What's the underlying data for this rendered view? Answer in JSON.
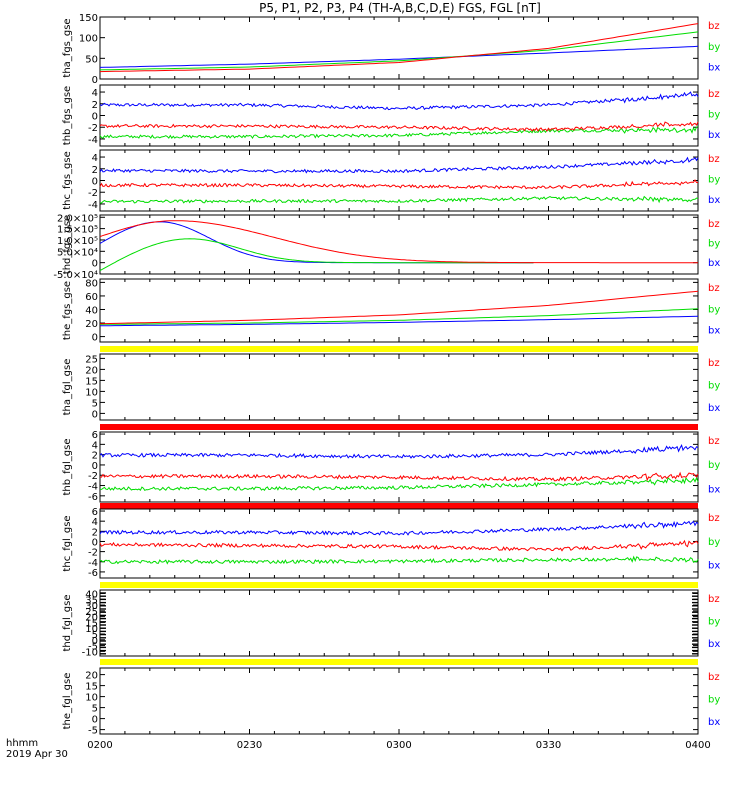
{
  "title": "P5, P1, P2, P3, P4 (TH-A,B,C,D,E) FGS, FGL [nT]",
  "time_axis": {
    "label": "hhmm",
    "date": "2019 Apr 30",
    "ticks": [
      "0200",
      "0230",
      "0300",
      "0330",
      "0400"
    ]
  },
  "legend_labels": [
    "bz",
    "by",
    "bx"
  ],
  "colors": {
    "bx": "#0000ff",
    "by": "#00dd00",
    "bz": "#ff0000",
    "flag_red": "#ff0000",
    "flag_yellow": "#ffff00"
  },
  "chart_data": [
    {
      "type": "line",
      "ylabel": "tha_fgs_gse",
      "ylim": [
        0,
        150
      ],
      "yticks": [
        "0",
        "50",
        "100",
        "150"
      ],
      "ytick_values": [
        0,
        50,
        100,
        150
      ],
      "x": [
        "0200",
        "0230",
        "0300",
        "0330",
        "0400"
      ],
      "series": [
        {
          "name": "bx",
          "values": [
            28,
            36,
            48,
            63,
            79
          ]
        },
        {
          "name": "by",
          "values": [
            22,
            29,
            44,
            70,
            114
          ]
        },
        {
          "name": "bz",
          "values": [
            18,
            24,
            40,
            74,
            134
          ]
        }
      ]
    },
    {
      "type": "line",
      "ylabel": "thb_fgs_gse",
      "ylim": [
        -5.2,
        5.2
      ],
      "yticks": [
        "-4",
        "-2",
        "0",
        "2",
        "4"
      ],
      "ytick_values": [
        -4,
        -2,
        0,
        2,
        4
      ],
      "x": [
        "0200",
        "0230",
        "0300",
        "0330",
        "0400"
      ],
      "series": [
        {
          "name": "bx",
          "values": [
            1.8,
            1.8,
            1.2,
            1.8,
            3.6
          ]
        },
        {
          "name": "by",
          "values": [
            -3.6,
            -3.6,
            -3.4,
            -2.6,
            -2.4
          ]
        },
        {
          "name": "bz",
          "values": [
            -1.8,
            -1.8,
            -2.0,
            -2.4,
            -1.4
          ]
        }
      ]
    },
    {
      "type": "line",
      "ylabel": "thc_fgs_gse",
      "ylim": [
        -5.2,
        5.2
      ],
      "yticks": [
        "-4",
        "-2",
        "0",
        "2",
        "4"
      ],
      "ytick_values": [
        -4,
        -2,
        0,
        2,
        4
      ],
      "x": [
        "0200",
        "0230",
        "0300",
        "0330",
        "0400"
      ],
      "series": [
        {
          "name": "bx",
          "values": [
            1.7,
            1.6,
            1.6,
            2.3,
            3.5
          ]
        },
        {
          "name": "by",
          "values": [
            -3.6,
            -3.5,
            -3.5,
            -3.0,
            -3.3
          ]
        },
        {
          "name": "bz",
          "values": [
            -0.8,
            -0.8,
            -1.0,
            -1.2,
            -0.3
          ]
        }
      ]
    },
    {
      "type": "line",
      "ylabel": "thd_fgs_gse",
      "ylim": [
        -50000,
        210000
      ],
      "yticks": [
        "-5.0×10⁴",
        "0",
        "5.0×10⁴",
        "1.0×10⁵",
        "1.5×10⁵",
        "2.0×10⁵"
      ],
      "ytick_values": [
        -50000,
        0,
        50000,
        100000,
        150000,
        200000
      ],
      "x": [
        "0200",
        "0230",
        "0300",
        "0330",
        "0400"
      ],
      "series": [
        {
          "name": "bx",
          "peak": 180000,
          "peak_time": "0212",
          "start": 85000,
          "end_time": "0327"
        },
        {
          "name": "by",
          "peak": 105000,
          "peak_time": "0218",
          "start": -35000,
          "end_time": "0327"
        },
        {
          "name": "bz",
          "peak": 185000,
          "peak_time": "0215",
          "start": 115000,
          "end_time": "0400"
        }
      ]
    },
    {
      "type": "line",
      "ylabel": "the_fgs_gse",
      "ylim": [
        -8,
        85
      ],
      "yticks": [
        "0",
        "20",
        "40",
        "60",
        "80"
      ],
      "ytick_values": [
        0,
        20,
        40,
        60,
        80
      ],
      "x": [
        "0200",
        "0230",
        "0300",
        "0330",
        "0400"
      ],
      "series": [
        {
          "name": "bx",
          "values": [
            16,
            18,
            21,
            25,
            30
          ]
        },
        {
          "name": "by",
          "values": [
            18,
            20,
            24,
            31,
            41
          ]
        },
        {
          "name": "bz",
          "values": [
            19,
            24,
            32,
            46,
            67
          ]
        }
      ]
    },
    {
      "type": "line",
      "ylabel": "tha_fgl_gse",
      "ylim": [
        -3,
        27
      ],
      "yticks": [
        "0",
        "5",
        "10",
        "15",
        "20",
        "25"
      ],
      "ytick_values": [
        0,
        5,
        10,
        15,
        20,
        25
      ],
      "x": [
        "0200",
        "0230",
        "0300",
        "0330",
        "0400"
      ],
      "series": []
    },
    {
      "type": "line",
      "ylabel": "thb_fgl_gse",
      "ylim": [
        -7.2,
        6.4
      ],
      "yticks": [
        "-6",
        "-4",
        "-2",
        "0",
        "2",
        "4",
        "6"
      ],
      "ytick_values": [
        -6,
        -4,
        -2,
        0,
        2,
        4,
        6
      ],
      "x": [
        "0200",
        "0230",
        "0300",
        "0330",
        "0400"
      ],
      "series": [
        {
          "name": "bx",
          "values": [
            1.9,
            1.9,
            1.6,
            2.0,
            3.4
          ]
        },
        {
          "name": "by",
          "values": [
            -4.6,
            -4.6,
            -4.4,
            -3.8,
            -3.0
          ]
        },
        {
          "name": "bz",
          "values": [
            -2.2,
            -2.2,
            -2.4,
            -2.8,
            -2.0
          ]
        }
      ]
    },
    {
      "type": "line",
      "ylabel": "thc_fgl_gse",
      "ylim": [
        -7.2,
        6.4
      ],
      "yticks": [
        "-6",
        "-4",
        "-2",
        "0",
        "2",
        "4",
        "6"
      ],
      "ytick_values": [
        -6,
        -4,
        -2,
        0,
        2,
        4,
        6
      ],
      "x": [
        "0200",
        "0230",
        "0300",
        "0330",
        "0400"
      ],
      "series": [
        {
          "name": "bx",
          "values": [
            1.8,
            1.8,
            1.6,
            2.4,
            3.6
          ]
        },
        {
          "name": "by",
          "values": [
            -4.0,
            -4.0,
            -3.9,
            -3.6,
            -3.6
          ]
        },
        {
          "name": "bz",
          "values": [
            -0.6,
            -0.8,
            -1.0,
            -1.6,
            -0.3
          ]
        }
      ]
    },
    {
      "type": "line",
      "ylabel": "thd_fgl_gse",
      "ylim": [
        -14,
        43
      ],
      "yticks": [
        "-10",
        "-5",
        "0",
        "5",
        "10",
        "15",
        "20",
        "25",
        "30",
        "35",
        "40"
      ],
      "ytick_values": [
        -10,
        -5,
        0,
        5,
        10,
        15,
        20,
        25,
        30,
        35,
        40
      ],
      "x": [
        "0200",
        "0230",
        "0300",
        "0330",
        "0400"
      ],
      "series": []
    },
    {
      "type": "line",
      "ylabel": "the_fgl_gse",
      "ylim": [
        -7,
        23
      ],
      "yticks": [
        "-5",
        "0",
        "5",
        "10",
        "15",
        "20"
      ],
      "ytick_values": [
        -5,
        0,
        5,
        10,
        15,
        20
      ],
      "x": [
        "0200",
        "0230",
        "0300",
        "0330",
        "0400"
      ],
      "series": []
    }
  ],
  "flag_bars": [
    {
      "color": "yellow",
      "between": [
        "the_fgs_gse",
        "tha_fgl_gse"
      ]
    },
    {
      "color": "red",
      "between": [
        "tha_fgl_gse",
        "thb_fgl_gse"
      ]
    },
    {
      "color": "red",
      "between": [
        "thb_fgl_gse",
        "thc_fgl_gse"
      ]
    },
    {
      "color": "yellow",
      "between": [
        "thc_fgl_gse",
        "thd_fgl_gse"
      ]
    },
    {
      "color": "yellow",
      "between": [
        "thd_fgl_gse",
        "the_fgl_gse"
      ]
    }
  ]
}
